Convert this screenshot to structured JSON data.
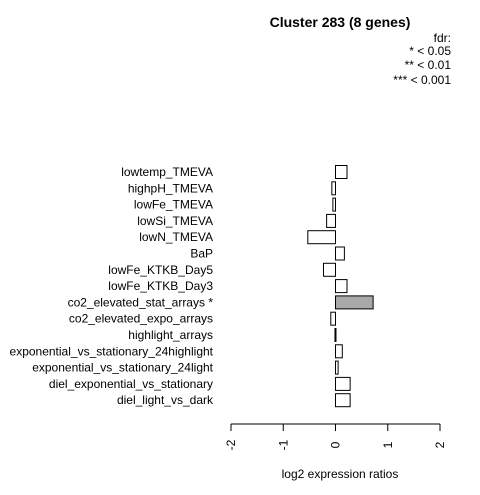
{
  "chart_data": {
    "type": "bar",
    "orientation": "horizontal",
    "title": "Cluster 283 (8 genes)",
    "xlabel": "log2 expression ratios",
    "ylabel": "",
    "xlim": [
      -2,
      2
    ],
    "xticks": [
      "-2",
      "-1",
      "0",
      "1",
      "2"
    ],
    "legend": {
      "title": "fdr:",
      "entries": [
        "* < 0.05",
        "** < 0.01",
        "*** < 0.001"
      ],
      "placement": "top-right"
    },
    "categories": [
      "lowtemp_TMEVA",
      "highpH_TMEVA",
      "lowFe_TMEVA",
      "lowSi_TMEVA",
      "lowN_TMEVA",
      "BaP",
      "lowFe_KTKB_Day5",
      "lowFe_KTKB_Day3",
      "co2_elevated_stat_arrays *",
      "co2_elevated_expo_arrays",
      "highlight_arrays",
      "exponential_vs_stationary_24highlight",
      "exponential_vs_stationary_24light",
      "diel_exponential_vs_stationary",
      "diel_light_vs_dark"
    ],
    "values": [
      0.22,
      -0.07,
      -0.05,
      -0.17,
      -0.53,
      0.17,
      -0.23,
      0.22,
      0.72,
      -0.09,
      -0.01,
      0.13,
      0.05,
      0.28,
      0.28
    ],
    "highlight": [
      false,
      false,
      false,
      false,
      false,
      false,
      false,
      false,
      true,
      false,
      false,
      false,
      false,
      false,
      false
    ],
    "colors": {
      "bar": "#ffffff",
      "highlight_bar": "#a9a9a9",
      "stroke": "#000000"
    }
  }
}
